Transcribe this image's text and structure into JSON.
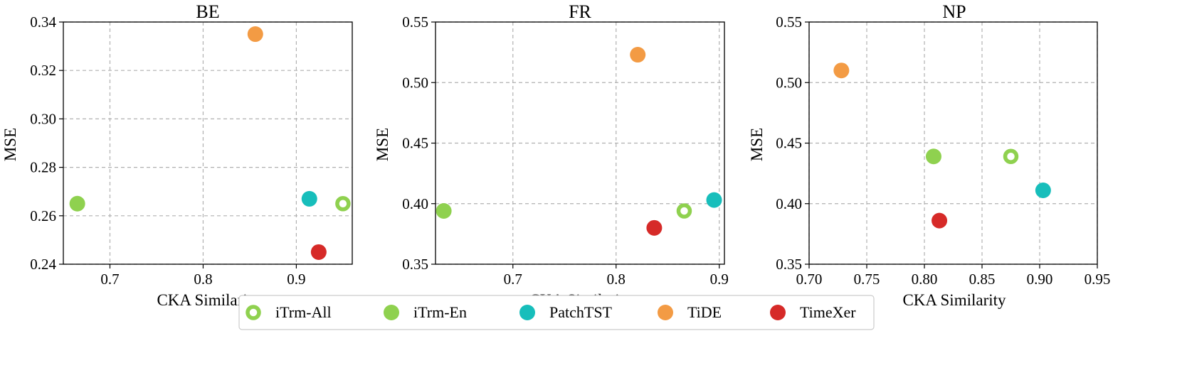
{
  "colors": {
    "iTrm-All": "#8fd14f",
    "iTrm-En": "#8fd14f",
    "PatchTST": "#17bebb",
    "TiDE": "#f39b44",
    "TimeXer": "#d62a28"
  },
  "legend": {
    "position": "bottom-center",
    "items": [
      {
        "label": "iTrm-All",
        "marker": "ring"
      },
      {
        "label": "iTrm-En",
        "marker": "filled"
      },
      {
        "label": "PatchTST",
        "marker": "filled"
      },
      {
        "label": "TiDE",
        "marker": "filled"
      },
      {
        "label": "TimeXer",
        "marker": "filled"
      }
    ]
  },
  "chart_data": [
    {
      "type": "scatter",
      "title": "BE",
      "xlabel": "CKA Similarity",
      "ylabel": "MSE",
      "xlim": [
        0.65,
        0.96
      ],
      "ylim": [
        0.24,
        0.34
      ],
      "xticks": [
        0.7,
        0.8,
        0.9
      ],
      "xtick_labels": [
        "0.7",
        "0.8",
        "0.9"
      ],
      "yticks": [
        0.24,
        0.26,
        0.28,
        0.3,
        0.32,
        0.34
      ],
      "ytick_labels": [
        "0.24",
        "0.26",
        "0.28",
        "0.30",
        "0.32",
        "0.34"
      ],
      "grid": true,
      "points": [
        {
          "series": "iTrm-All",
          "x": 0.95,
          "y": 0.265
        },
        {
          "series": "iTrm-En",
          "x": 0.665,
          "y": 0.265
        },
        {
          "series": "PatchTST",
          "x": 0.914,
          "y": 0.267
        },
        {
          "series": "TiDE",
          "x": 0.856,
          "y": 0.335
        },
        {
          "series": "TimeXer",
          "x": 0.924,
          "y": 0.245
        }
      ]
    },
    {
      "type": "scatter",
      "title": "FR",
      "xlabel": "CKA Similarity",
      "ylabel": "MSE",
      "xlim": [
        0.625,
        0.905
      ],
      "ylim": [
        0.35,
        0.55
      ],
      "xticks": [
        0.7,
        0.8,
        0.9
      ],
      "xtick_labels": [
        "0.7",
        "0.8",
        "0.9"
      ],
      "yticks": [
        0.35,
        0.4,
        0.45,
        0.5,
        0.55
      ],
      "ytick_labels": [
        "0.35",
        "0.40",
        "0.45",
        "0.50",
        "0.55"
      ],
      "grid": true,
      "points": [
        {
          "series": "iTrm-All",
          "x": 0.866,
          "y": 0.394
        },
        {
          "series": "iTrm-En",
          "x": 0.633,
          "y": 0.394
        },
        {
          "series": "PatchTST",
          "x": 0.895,
          "y": 0.403
        },
        {
          "series": "TiDE",
          "x": 0.821,
          "y": 0.523
        },
        {
          "series": "TimeXer",
          "x": 0.837,
          "y": 0.38
        }
      ]
    },
    {
      "type": "scatter",
      "title": "NP",
      "xlabel": "CKA Similarity",
      "ylabel": "MSE",
      "xlim": [
        0.7,
        0.95
      ],
      "ylim": [
        0.35,
        0.55
      ],
      "xticks": [
        0.7,
        0.75,
        0.8,
        0.85,
        0.9,
        0.95
      ],
      "xtick_labels": [
        "0.70",
        "0.75",
        "0.80",
        "0.85",
        "0.90",
        "0.95"
      ],
      "yticks": [
        0.35,
        0.4,
        0.45,
        0.5,
        0.55
      ],
      "ytick_labels": [
        "0.35",
        "0.40",
        "0.45",
        "0.50",
        "0.55"
      ],
      "grid": true,
      "points": [
        {
          "series": "iTrm-All",
          "x": 0.875,
          "y": 0.439
        },
        {
          "series": "iTrm-En",
          "x": 0.808,
          "y": 0.439
        },
        {
          "series": "PatchTST",
          "x": 0.903,
          "y": 0.411
        },
        {
          "series": "TiDE",
          "x": 0.728,
          "y": 0.51
        },
        {
          "series": "TimeXer",
          "x": 0.813,
          "y": 0.386
        }
      ]
    }
  ]
}
